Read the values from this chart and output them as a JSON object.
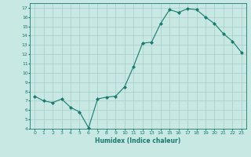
{
  "x": [
    0,
    1,
    2,
    3,
    4,
    5,
    6,
    7,
    8,
    9,
    10,
    11,
    12,
    13,
    14,
    15,
    16,
    17,
    18,
    19,
    20,
    21,
    22,
    23
  ],
  "y": [
    7.5,
    7.0,
    6.8,
    7.2,
    6.3,
    5.8,
    4.1,
    7.2,
    7.4,
    7.5,
    8.5,
    10.7,
    13.2,
    13.3,
    15.3,
    16.8,
    16.5,
    16.9,
    16.8,
    16.0,
    15.3,
    14.2,
    13.4,
    12.2
  ],
  "xlabel": "Humidex (Indice chaleur)",
  "ylim": [
    4,
    17.5
  ],
  "xlim": [
    -0.5,
    23.5
  ],
  "yticks": [
    4,
    5,
    6,
    7,
    8,
    9,
    10,
    11,
    12,
    13,
    14,
    15,
    16,
    17
  ],
  "xticks": [
    0,
    1,
    2,
    3,
    4,
    5,
    6,
    7,
    8,
    9,
    10,
    11,
    12,
    13,
    14,
    15,
    16,
    17,
    18,
    19,
    20,
    21,
    22,
    23
  ],
  "line_color": "#1a7a6e",
  "marker_color": "#1a7a6e",
  "bg_color": "#c8e8e4",
  "grid_color": "#a8ccc8"
}
